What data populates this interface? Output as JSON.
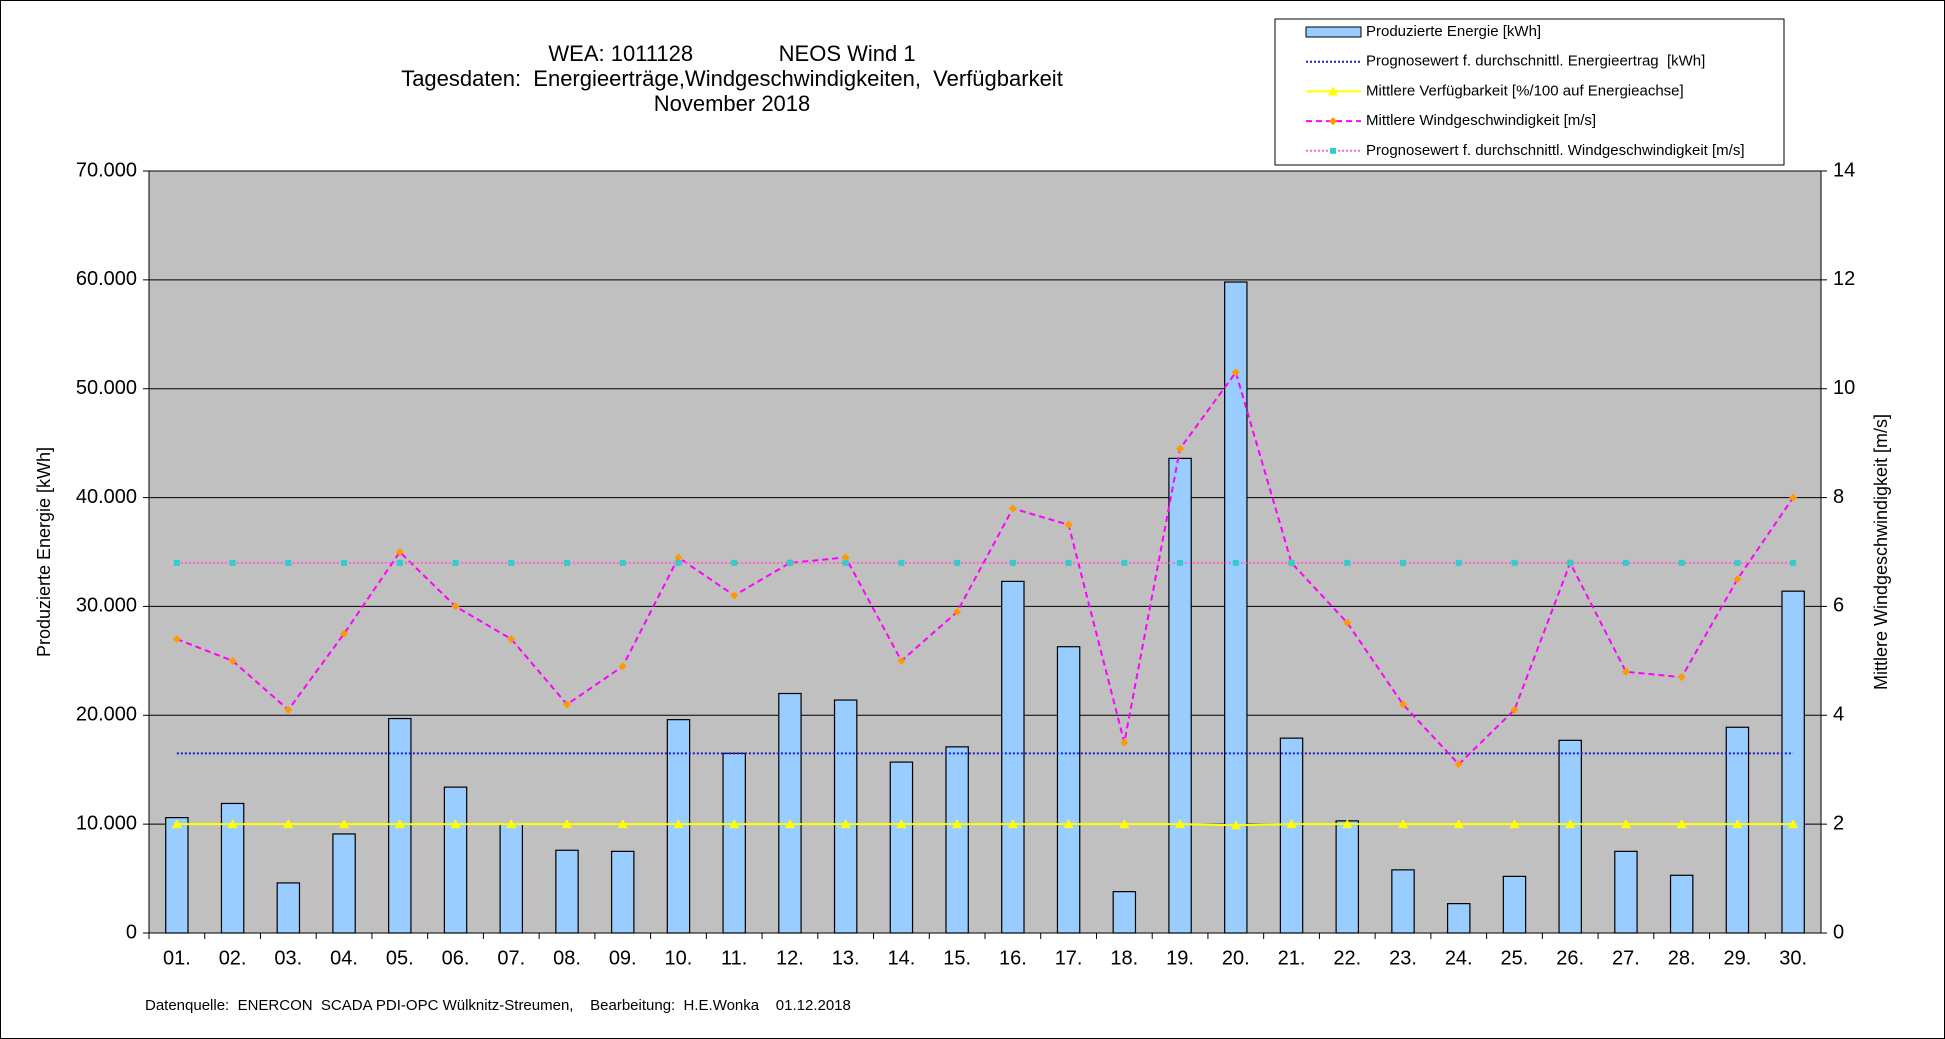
{
  "chart_data": {
    "type": "bar",
    "title_lines": [
      "WEA: 1011128              NEOS Wind 1",
      "Tagesdaten:  Energieerträge,Windgeschwindigkeiten,  Verfügbarkeit",
      "November 2018"
    ],
    "ylabel": "Produzierte Energie [kWh]",
    "y2label": "Mittlere Windgeschwindigkeit [m/s]",
    "footer": "Datenquelle:  ENERCON  SCADA PDI-OPC Wülknitz-Streumen,    Bearbeitung:  H.E.Wonka    01.12.2018",
    "categories": [
      "01.",
      "02.",
      "03.",
      "04.",
      "05.",
      "06.",
      "07.",
      "08.",
      "09.",
      "10.",
      "11.",
      "12.",
      "13.",
      "14.",
      "15.",
      "16.",
      "17.",
      "18.",
      "19.",
      "20.",
      "21.",
      "22.",
      "23.",
      "24.",
      "25.",
      "26.",
      "27.",
      "28.",
      "29.",
      "30."
    ],
    "series": [
      {
        "name": "Produzierte Energie [kWh]",
        "type": "bar",
        "color": "#99ccff",
        "values": [
          10600,
          11900,
          4600,
          9100,
          19700,
          13400,
          10000,
          7600,
          7500,
          19600,
          16500,
          22000,
          21400,
          15700,
          17100,
          32300,
          26300,
          3800,
          43600,
          59800,
          17900,
          10300,
          5800,
          2700,
          5200,
          17700,
          7500,
          5300,
          18900,
          31400
        ]
      },
      {
        "name": "Prognosewert f. durchschnittl. Energieertrag  [kWh]",
        "type": "line",
        "color": "#1f1fcc",
        "dash": "2,2",
        "marker_color": "#1f1fcc",
        "values": [
          16500,
          16500,
          16500,
          16500,
          16500,
          16500,
          16500,
          16500,
          16500,
          16500,
          16500,
          16500,
          16500,
          16500,
          16500,
          16500,
          16500,
          16500,
          16500,
          16500,
          16500,
          16500,
          16500,
          16500,
          16500,
          16500,
          16500,
          16500,
          16500,
          16500
        ]
      },
      {
        "name": "Mittlere Verfügbarkeit [%/100 auf Energieachse]",
        "type": "line",
        "color": "#ffff00",
        "dash": "none",
        "marker": "triangle",
        "marker_color": "#ffff00",
        "values": [
          10000,
          10000,
          10000,
          10000,
          10000,
          10000,
          10000,
          10000,
          10000,
          10000,
          10000,
          10000,
          10000,
          10000,
          10000,
          10000,
          10000,
          10000,
          10000,
          9900,
          10000,
          10000,
          10000,
          10000,
          10000,
          10000,
          10000,
          10000,
          10000,
          10000
        ]
      },
      {
        "name": "Mittlere Windgeschwindigkeit [m/s]",
        "type": "line",
        "axis": "y2",
        "color": "#ff00ff",
        "dash": "6,4",
        "marker": "diamond",
        "marker_color": "#ff9900",
        "values": [
          5.4,
          5.0,
          4.1,
          5.5,
          7.0,
          6.0,
          5.4,
          4.2,
          4.9,
          6.9,
          6.2,
          6.8,
          6.9,
          5.0,
          5.9,
          7.8,
          7.5,
          3.5,
          8.9,
          10.3,
          6.8,
          5.7,
          4.2,
          3.1,
          4.1,
          6.8,
          4.8,
          4.7,
          6.5,
          8.0
        ]
      },
      {
        "name": "Prognosewert f. durchschnittl. Windgeschwindigkeit [m/s]",
        "type": "line",
        "axis": "y2",
        "color": "#ff66cc",
        "dash": "2,2",
        "marker": "square",
        "marker_color": "#33cccc",
        "values": [
          6.8,
          6.8,
          6.8,
          6.8,
          6.8,
          6.8,
          6.8,
          6.8,
          6.8,
          6.8,
          6.8,
          6.8,
          6.8,
          6.8,
          6.8,
          6.8,
          6.8,
          6.8,
          6.8,
          6.8,
          6.8,
          6.8,
          6.8,
          6.8,
          6.8,
          6.8,
          6.8,
          6.8,
          6.8,
          6.8
        ]
      }
    ],
    "ylim": [
      0,
      70000
    ],
    "yticks": [
      0,
      {
        "value": 10000,
        "label": "10.000"
      },
      {
        "value": 20000,
        "label": "20.000"
      },
      {
        "value": 30000,
        "label": "30.000"
      },
      {
        "value": 40000,
        "label": "40.000"
      },
      {
        "value": 50000,
        "label": "50.000"
      },
      {
        "value": 60000,
        "label": "60.000"
      },
      {
        "value": 70000,
        "label": "70.000"
      }
    ],
    "y2lim": [
      0,
      14
    ],
    "y2ticks": [
      0,
      2,
      4,
      6,
      8,
      10,
      12,
      14
    ],
    "grid": true,
    "legend": "top-right"
  }
}
